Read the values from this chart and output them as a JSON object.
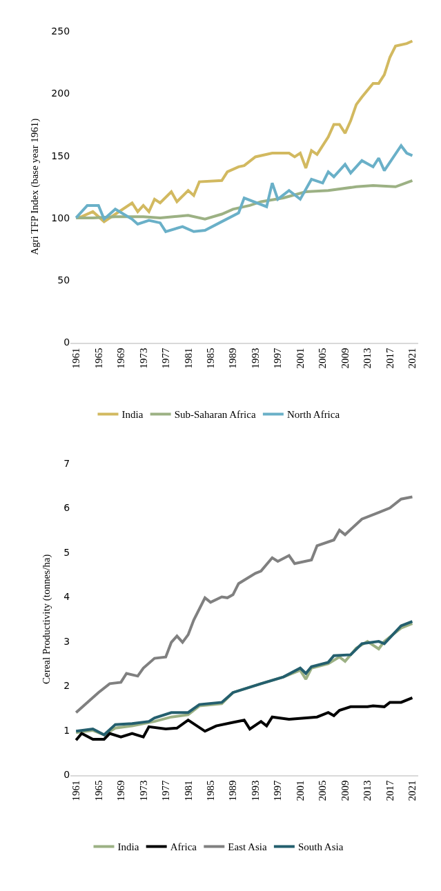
{
  "chart_data": [
    {
      "type": "line",
      "ylabel": "Agri TFP Index (base year 1961)",
      "xlim": [
        1960,
        2022
      ],
      "xticks": [
        1961,
        1965,
        1969,
        1973,
        1977,
        1981,
        1985,
        1989,
        1993,
        1997,
        2001,
        2005,
        2009,
        2013,
        2017,
        2021
      ],
      "ylim": [
        0,
        250
      ],
      "yticks": [
        0,
        50,
        100,
        150,
        200,
        250
      ],
      "legend": "bottom",
      "marker": "none",
      "line_style": "solid",
      "series": [
        {
          "name": "India",
          "color": "#d2b960",
          "x": [
            1961,
            1962,
            1964,
            1966,
            1971,
            1972,
            1973,
            1974,
            1975,
            1976,
            1978,
            1979,
            1981,
            1982,
            1983,
            1987,
            1988,
            1990,
            1991,
            1993,
            1996,
            1999,
            2000,
            2001,
            2002,
            2003,
            2004,
            2006,
            2007,
            2008,
            2009,
            2010,
            2011,
            2012,
            2014,
            2015,
            2016,
            2017,
            2018,
            2020,
            2021
          ],
          "values": [
            100,
            101,
            105,
            97,
            112,
            105,
            110,
            105,
            115,
            112,
            121,
            113,
            122,
            118,
            129,
            130,
            137,
            141,
            142,
            149,
            152,
            152,
            149,
            152,
            140,
            154,
            151,
            165,
            175,
            175,
            168,
            178,
            191,
            197,
            208,
            208,
            215,
            229,
            238,
            240,
            242
          ]
        },
        {
          "name": "Sub-Saharan Africa",
          "color": "#9cb184",
          "x": [
            1961,
            1964,
            1968,
            1973,
            1976,
            1981,
            1984,
            1987,
            1989,
            1992,
            1994,
            1998,
            2002,
            2006,
            2011,
            2014,
            2018,
            2021
          ],
          "values": [
            100,
            100,
            101,
            101,
            100,
            102,
            99,
            103,
            107,
            110,
            113,
            116,
            121,
            122,
            125,
            126,
            125,
            130
          ]
        },
        {
          "name": "North Africa",
          "color": "#6ab0c8",
          "x": [
            1961,
            1963,
            1965,
            1966,
            1968,
            1971,
            1972,
            1974,
            1976,
            1977,
            1980,
            1982,
            1984,
            1987,
            1990,
            1991,
            1995,
            1996,
            1997,
            1999,
            2001,
            2003,
            2005,
            2006,
            2007,
            2009,
            2010,
            2012,
            2014,
            2015,
            2016,
            2019,
            2020,
            2021
          ],
          "values": [
            100,
            110,
            110,
            99,
            107,
            99,
            95,
            98,
            96,
            89,
            93,
            89,
            90,
            97,
            104,
            116,
            109,
            128,
            115,
            122,
            115,
            131,
            128,
            137,
            133,
            143,
            136,
            146,
            141,
            148,
            138,
            158,
            152,
            150
          ]
        }
      ]
    },
    {
      "type": "line",
      "ylabel": "Cereal Productivity (tonnes/ha)",
      "xlim": [
        1960,
        2022
      ],
      "xticks": [
        1961,
        1965,
        1969,
        1973,
        1977,
        1981,
        1985,
        1989,
        1993,
        1997,
        2001,
        2005,
        2009,
        2013,
        2017,
        2021
      ],
      "ylim": [
        0,
        7
      ],
      "yticks": [
        0,
        1,
        2,
        3,
        4,
        5,
        6,
        7
      ],
      "legend": "bottom",
      "marker": "none",
      "line_style": "solid",
      "series": [
        {
          "name": "India",
          "color": "#9cb184",
          "x": [
            1961,
            1964,
            1966,
            1968,
            1971,
            1973,
            1975,
            1978,
            1981,
            1983,
            1987,
            1989,
            1994,
            1998,
            2001,
            2002,
            2003,
            2006,
            2008,
            2009,
            2011,
            2013,
            2015,
            2016,
            2019,
            2021
          ],
          "values": [
            0.95,
            1.0,
            0.9,
            1.05,
            1.1,
            1.15,
            1.2,
            1.3,
            1.35,
            1.55,
            1.6,
            1.85,
            2.05,
            2.2,
            2.35,
            2.15,
            2.4,
            2.5,
            2.65,
            2.55,
            2.85,
            3.0,
            2.83,
            3.0,
            3.3,
            3.4
          ]
        },
        {
          "name": "Africa",
          "color": "#000000",
          "x": [
            1961,
            1962,
            1964,
            1966,
            1967,
            1969,
            1971,
            1973,
            1974,
            1977,
            1979,
            1981,
            1984,
            1986,
            1989,
            1991,
            1992,
            1994,
            1995,
            1996,
            1999,
            2004,
            2006,
            2007,
            2008,
            2010,
            2013,
            2014,
            2016,
            2017,
            2019,
            2021
          ],
          "values": [
            0.78,
            0.93,
            0.8,
            0.8,
            0.93,
            0.85,
            0.93,
            0.85,
            1.08,
            1.03,
            1.05,
            1.23,
            0.98,
            1.1,
            1.18,
            1.23,
            1.03,
            1.2,
            1.1,
            1.3,
            1.25,
            1.3,
            1.4,
            1.33,
            1.45,
            1.53,
            1.53,
            1.55,
            1.53,
            1.63,
            1.63,
            1.73
          ]
        },
        {
          "name": "East Asia",
          "color": "#808080",
          "x": [
            1961,
            1965,
            1967,
            1969,
            1970,
            1972,
            1973,
            1975,
            1977,
            1978,
            1979,
            1980,
            1981,
            1982,
            1984,
            1985,
            1987,
            1988,
            1989,
            1990,
            1993,
            1994,
            1996,
            1997,
            1999,
            2000,
            2003,
            2004,
            2007,
            2008,
            2009,
            2012,
            2015,
            2017,
            2019,
            2021
          ],
          "values": [
            1.4,
            1.85,
            2.05,
            2.08,
            2.28,
            2.22,
            2.4,
            2.62,
            2.65,
            2.98,
            3.12,
            2.98,
            3.15,
            3.48,
            3.98,
            3.88,
            4.0,
            3.98,
            4.05,
            4.3,
            4.53,
            4.58,
            4.88,
            4.8,
            4.93,
            4.75,
            4.83,
            5.15,
            5.28,
            5.5,
            5.4,
            5.75,
            5.9,
            6.0,
            6.2,
            6.25
          ]
        },
        {
          "name": "South Asia",
          "color": "#245f6e",
          "x": [
            1961,
            1964,
            1966,
            1968,
            1971,
            1974,
            1975,
            1978,
            1981,
            1983,
            1987,
            1989,
            1994,
            1998,
            2001,
            2002,
            2003,
            2006,
            2007,
            2010,
            2012,
            2015,
            2016,
            2019,
            2021
          ],
          "values": [
            0.98,
            1.03,
            0.9,
            1.13,
            1.15,
            1.2,
            1.28,
            1.4,
            1.4,
            1.58,
            1.63,
            1.85,
            2.05,
            2.2,
            2.4,
            2.28,
            2.43,
            2.53,
            2.68,
            2.7,
            2.95,
            3.0,
            2.95,
            3.35,
            3.45
          ]
        }
      ]
    }
  ]
}
